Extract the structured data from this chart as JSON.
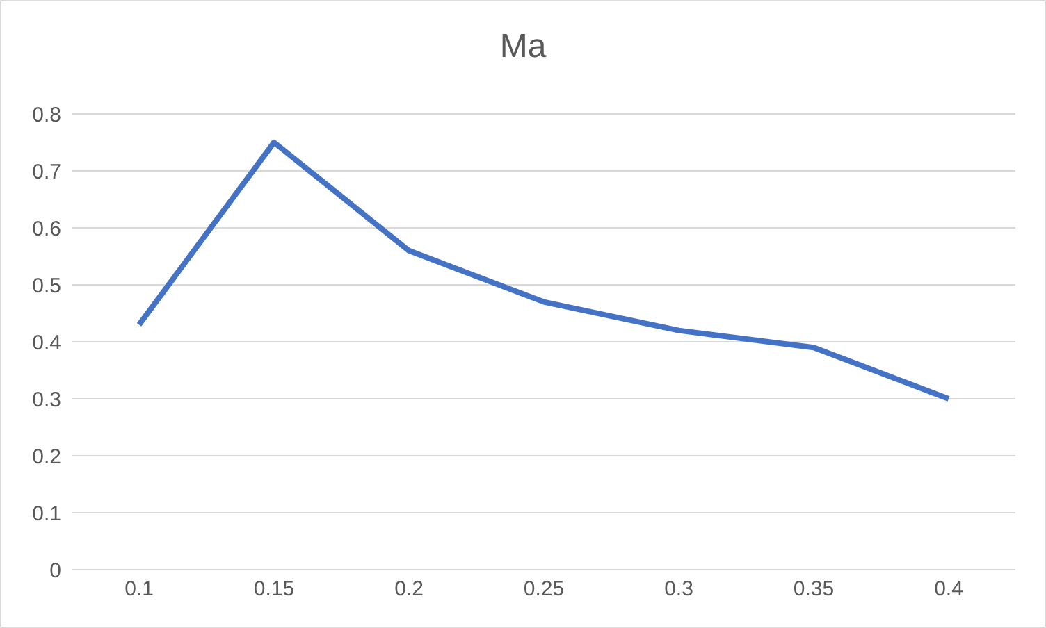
{
  "chart_data": {
    "type": "line",
    "title": "Ma",
    "categories": [
      "0.1",
      "0.15",
      "0.2",
      "0.25",
      "0.3",
      "0.35",
      "0.4"
    ],
    "series": [
      {
        "color": "#4472c4",
        "values": [
          0.43,
          0.75,
          0.56,
          0.47,
          0.42,
          0.39,
          0.3
        ]
      }
    ],
    "ylim": [
      0,
      0.8
    ],
    "yticks": [
      0,
      0.1,
      0.2,
      0.3,
      0.4,
      0.5,
      0.6,
      0.7,
      0.8
    ],
    "grid": "y",
    "marker": "none",
    "line_style": "solid"
  }
}
